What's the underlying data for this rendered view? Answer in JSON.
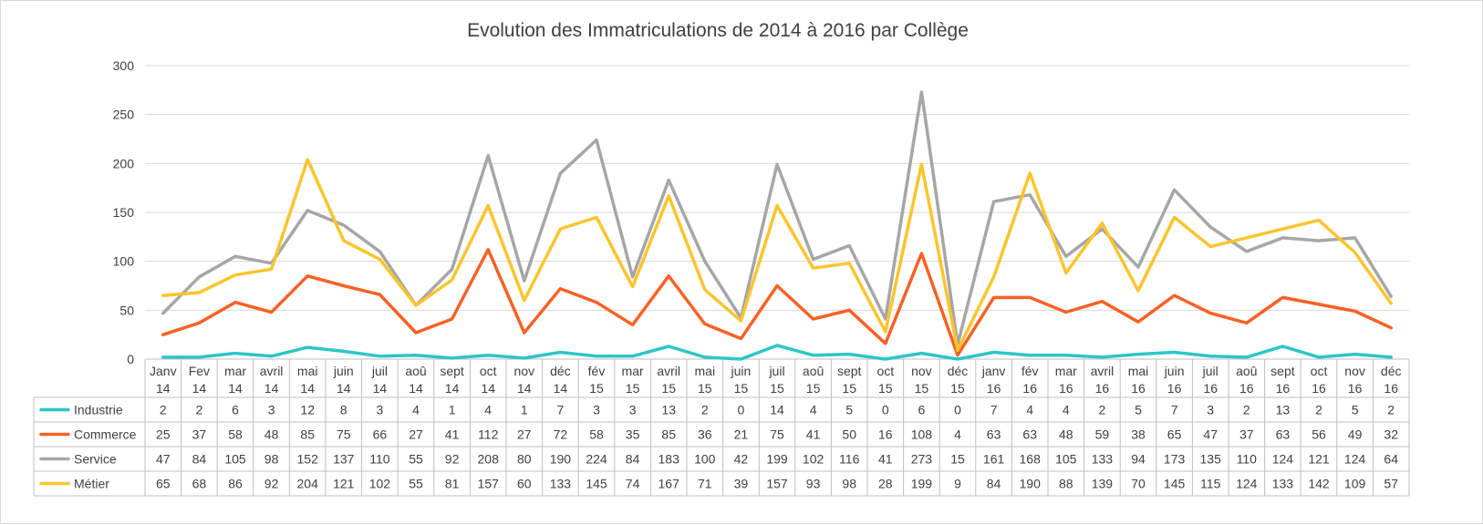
{
  "chart_data": {
    "type": "line",
    "title": "Evolution des Immatriculations de 2014 à 2016 par Collège",
    "xlabel": "",
    "ylabel": "",
    "ylim": [
      0,
      300
    ],
    "yticks": [
      0,
      50,
      100,
      150,
      200,
      250,
      300
    ],
    "grid": true,
    "legend": "data-table-bottom",
    "categories": [
      [
        "Janv",
        "14"
      ],
      [
        "Fev",
        "14"
      ],
      [
        "mar",
        "14"
      ],
      [
        "avril",
        "14"
      ],
      [
        "mai",
        "14"
      ],
      [
        "juin",
        "14"
      ],
      [
        "juil",
        "14"
      ],
      [
        "aoû",
        "14"
      ],
      [
        "sept",
        "14"
      ],
      [
        "oct",
        "14"
      ],
      [
        "nov",
        "14"
      ],
      [
        "déc",
        "14"
      ],
      [
        "fév",
        "15"
      ],
      [
        "mar",
        "15"
      ],
      [
        "avril",
        "15"
      ],
      [
        "mai",
        "15"
      ],
      [
        "juin",
        "15"
      ],
      [
        "juil",
        "15"
      ],
      [
        "aoû",
        "15"
      ],
      [
        "sept",
        "15"
      ],
      [
        "oct",
        "15"
      ],
      [
        "nov",
        "15"
      ],
      [
        "déc",
        "15"
      ],
      [
        "janv",
        "16"
      ],
      [
        "fév",
        "16"
      ],
      [
        "mar",
        "16"
      ],
      [
        "avril",
        "16"
      ],
      [
        "mai",
        "16"
      ],
      [
        "juin",
        "16"
      ],
      [
        "juil",
        "16"
      ],
      [
        "aoû",
        "16"
      ],
      [
        "sept",
        "16"
      ],
      [
        "oct",
        "16"
      ],
      [
        "nov",
        "16"
      ],
      [
        "déc",
        "16"
      ]
    ],
    "series": [
      {
        "name": "Industrie",
        "color": "#2dc6c6",
        "values": [
          2,
          2,
          6,
          3,
          12,
          8,
          3,
          4,
          1,
          4,
          1,
          7,
          3,
          3,
          13,
          2,
          0,
          14,
          4,
          5,
          0,
          6,
          0,
          7,
          4,
          4,
          2,
          5,
          7,
          3,
          2,
          13,
          2,
          5,
          2
        ]
      },
      {
        "name": "Commerce",
        "color": "#f96125",
        "values": [
          25,
          37,
          58,
          48,
          85,
          75,
          66,
          27,
          41,
          112,
          27,
          72,
          58,
          35,
          85,
          36,
          21,
          75,
          41,
          50,
          16,
          108,
          4,
          63,
          63,
          48,
          59,
          38,
          65,
          47,
          37,
          63,
          56,
          49,
          32
        ]
      },
      {
        "name": "Service",
        "color": "#a6a6a6",
        "values": [
          47,
          84,
          105,
          98,
          152,
          137,
          110,
          55,
          92,
          208,
          80,
          190,
          224,
          84,
          183,
          100,
          42,
          199,
          102,
          116,
          41,
          273,
          15,
          161,
          168,
          105,
          133,
          94,
          173,
          135,
          110,
          124,
          121,
          124,
          64
        ]
      },
      {
        "name": "Métier",
        "color": "#fcc42d",
        "values": [
          65,
          68,
          86,
          92,
          204,
          121,
          102,
          55,
          81,
          157,
          60,
          133,
          145,
          74,
          167,
          71,
          39,
          157,
          93,
          98,
          28,
          199,
          9,
          84,
          190,
          88,
          139,
          70,
          145,
          115,
          124,
          133,
          142,
          109,
          57
        ]
      }
    ]
  }
}
